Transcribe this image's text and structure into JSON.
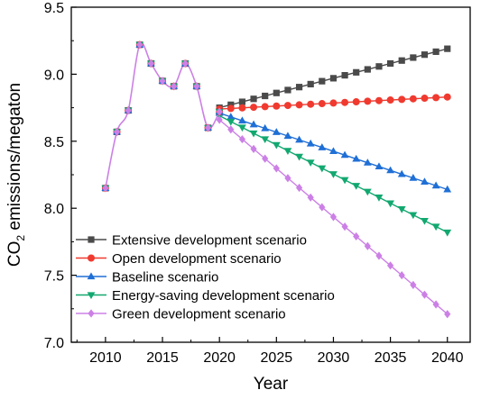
{
  "chart_data": {
    "type": "line",
    "xlabel": "Year",
    "ylabel_main": "CO",
    "ylabel_sub": "2",
    "ylabel_rest": " emissions/megaton",
    "xlim": [
      2007,
      2042
    ],
    "ylim": [
      7.0,
      9.5
    ],
    "xticks": [
      2010,
      2015,
      2020,
      2025,
      2030,
      2035,
      2040
    ],
    "yticks": [
      7.0,
      7.5,
      8.0,
      8.5,
      9.0,
      9.5
    ],
    "xtick_labels": [
      "2010",
      "2015",
      "2020",
      "2025",
      "2030",
      "2035",
      "2040"
    ],
    "ytick_labels": [
      "7.0",
      "7.5",
      "8.0",
      "8.5",
      "9.0",
      "9.5"
    ],
    "legend_position": "bottom-left",
    "historical": {
      "x": [
        2010,
        2011,
        2012,
        2013,
        2014,
        2015,
        2016,
        2017,
        2018,
        2019,
        2020
      ],
      "y": [
        8.15,
        8.57,
        8.73,
        9.22,
        9.08,
        8.95,
        8.91,
        9.08,
        8.91,
        8.6,
        8.72
      ]
    },
    "series": [
      {
        "name": "Extensive development scenario",
        "color": "#4a4a4a",
        "marker": "square",
        "start": 8.75,
        "end": 9.19
      },
      {
        "name": "Open development scenario",
        "color": "#f03a2f",
        "marker": "circle",
        "start": 8.74,
        "end": 8.83
      },
      {
        "name": "Baseline scenario",
        "color": "#1f6fd6",
        "marker": "triangle-up",
        "start": 8.71,
        "end": 8.14
      },
      {
        "name": "Energy-saving development scenario",
        "color": "#12a870",
        "marker": "triangle-down",
        "start": 8.69,
        "end": 7.82
      },
      {
        "name": "Green development scenario",
        "color": "#cc80e6",
        "marker": "diamond",
        "start": 8.66,
        "end": 7.21
      }
    ]
  }
}
